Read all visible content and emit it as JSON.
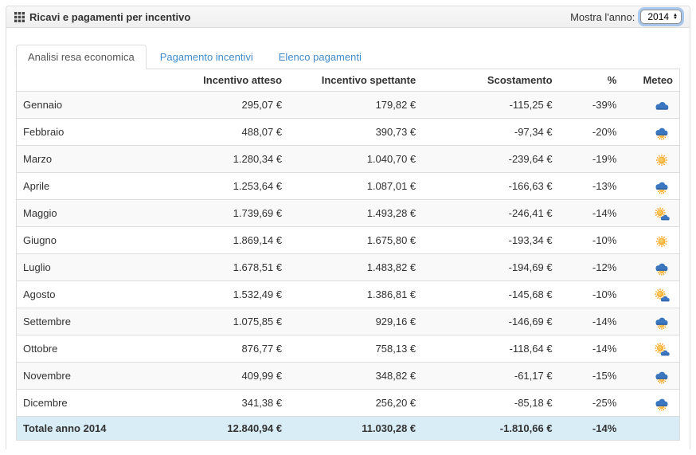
{
  "panel": {
    "title": "Ricavi e pagamenti per incentivo",
    "year_label": "Mostra l'anno:",
    "year_value": "2014"
  },
  "tabs": [
    {
      "label": "Analisi resa economica",
      "active": true
    },
    {
      "label": "Pagamento incentivi",
      "active": false
    },
    {
      "label": "Elenco pagamenti",
      "active": false
    }
  ],
  "table": {
    "headers": [
      "",
      "Incentivo atteso",
      "Incentivo spettante",
      "Scostamento",
      "%",
      "Meteo"
    ],
    "rows": [
      {
        "month": "Gennaio",
        "atteso": "295,07 €",
        "spettante": "179,82 €",
        "scostamento": "-115,25 €",
        "percent": "-39%",
        "meteo": "cloud"
      },
      {
        "month": "Febbraio",
        "atteso": "488,07 €",
        "spettante": "390,73 €",
        "scostamento": "-97,34 €",
        "percent": "-20%",
        "meteo": "cloud-sun"
      },
      {
        "month": "Marzo",
        "atteso": "1.280,34 €",
        "spettante": "1.040,70 €",
        "scostamento": "-239,64 €",
        "percent": "-19%",
        "meteo": "sun"
      },
      {
        "month": "Aprile",
        "atteso": "1.253,64 €",
        "spettante": "1.087,01 €",
        "scostamento": "-166,63 €",
        "percent": "-13%",
        "meteo": "cloud-sun"
      },
      {
        "month": "Maggio",
        "atteso": "1.739,69 €",
        "spettante": "1.493,28 €",
        "scostamento": "-246,41 €",
        "percent": "-14%",
        "meteo": "sun-cloud"
      },
      {
        "month": "Giugno",
        "atteso": "1.869,14 €",
        "spettante": "1.675,80 €",
        "scostamento": "-193,34 €",
        "percent": "-10%",
        "meteo": "sun"
      },
      {
        "month": "Luglio",
        "atteso": "1.678,51 €",
        "spettante": "1.483,82 €",
        "scostamento": "-194,69 €",
        "percent": "-12%",
        "meteo": "cloud-sun"
      },
      {
        "month": "Agosto",
        "atteso": "1.532,49 €",
        "spettante": "1.386,81 €",
        "scostamento": "-145,68 €",
        "percent": "-10%",
        "meteo": "sun-cloud"
      },
      {
        "month": "Settembre",
        "atteso": "1.075,85 €",
        "spettante": "929,16 €",
        "scostamento": "-146,69 €",
        "percent": "-14%",
        "meteo": "cloud-sun"
      },
      {
        "month": "Ottobre",
        "atteso": "876,77 €",
        "spettante": "758,13 €",
        "scostamento": "-118,64 €",
        "percent": "-14%",
        "meteo": "sun-cloud"
      },
      {
        "month": "Novembre",
        "atteso": "409,99 €",
        "spettante": "348,82 €",
        "scostamento": "-61,17 €",
        "percent": "-15%",
        "meteo": "cloud-sun"
      },
      {
        "month": "Dicembre",
        "atteso": "341,38 €",
        "spettante": "256,20 €",
        "scostamento": "-85,18 €",
        "percent": "-25%",
        "meteo": "cloud-sun"
      }
    ],
    "total": {
      "label": "Totale anno 2014",
      "atteso": "12.840,94 €",
      "spettante": "11.030,28 €",
      "scostamento": "-1.810,66 €",
      "percent": "-14%"
    }
  },
  "colors": {
    "link_blue": "#428bca",
    "stripe": "#f9f9f9",
    "total_row_bg": "#d9edf7",
    "border": "#dddddd",
    "header_bg": "#f5f5f5",
    "cloud_blue": "#3b76c0",
    "sun_orange": "#f59b00"
  }
}
